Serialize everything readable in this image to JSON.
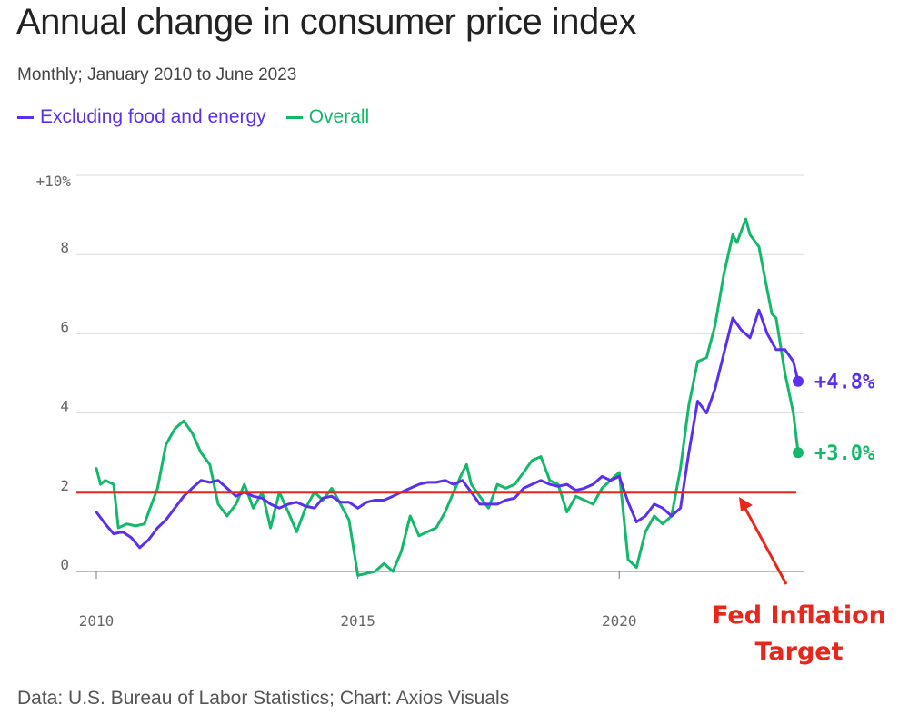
{
  "title": "Annual change in consumer price index",
  "subtitle": "Monthly; January 2010 to June 2023",
  "legend": [
    {
      "label": "Excluding food and energy",
      "color": "#5b2ff0"
    },
    {
      "label": "Overall",
      "color": "#14b86a"
    }
  ],
  "footer": "Data: U.S. Bureau of Labor Statistics; Chart: Axios Visuals",
  "annotation": {
    "line1": "Fed Inflation",
    "line2": "Target",
    "color": "#e8271c"
  },
  "chart_data": {
    "type": "line",
    "title": "Annual change in consumer price index",
    "xlabel": "",
    "ylabel": "",
    "xlim": [
      2010,
      2023.42
    ],
    "ylim": [
      0,
      10
    ],
    "x_ticks": [
      {
        "value": 2010,
        "label": "2010"
      },
      {
        "value": 2015,
        "label": "2015"
      },
      {
        "value": 2020,
        "label": "2020"
      }
    ],
    "y_ticks": [
      {
        "value": 0,
        "label": "0"
      },
      {
        "value": 2,
        "label": "2"
      },
      {
        "value": 4,
        "label": "4"
      },
      {
        "value": 6,
        "label": "6"
      },
      {
        "value": 8,
        "label": "8"
      },
      {
        "value": 10,
        "label": "+10%"
      }
    ],
    "reference_line": {
      "value": 2,
      "label": "Fed Inflation Target",
      "color": "#e8271c"
    },
    "series": [
      {
        "name": "Excluding food and energy",
        "color": "#5b2ff0",
        "end_label": "+4.8%",
        "points": [
          [
            2010.0,
            1.5
          ],
          [
            2010.17,
            1.2
          ],
          [
            2010.33,
            0.95
          ],
          [
            2010.5,
            1.0
          ],
          [
            2010.67,
            0.85
          ],
          [
            2010.83,
            0.6
          ],
          [
            2011.0,
            0.8
          ],
          [
            2011.17,
            1.1
          ],
          [
            2011.33,
            1.3
          ],
          [
            2011.5,
            1.6
          ],
          [
            2011.67,
            1.9
          ],
          [
            2011.83,
            2.1
          ],
          [
            2012.0,
            2.3
          ],
          [
            2012.17,
            2.25
          ],
          [
            2012.33,
            2.3
          ],
          [
            2012.5,
            2.1
          ],
          [
            2012.67,
            1.9
          ],
          [
            2012.83,
            2.0
          ],
          [
            2013.0,
            1.9
          ],
          [
            2013.17,
            1.85
          ],
          [
            2013.33,
            1.7
          ],
          [
            2013.5,
            1.6
          ],
          [
            2013.67,
            1.7
          ],
          [
            2013.83,
            1.75
          ],
          [
            2014.0,
            1.65
          ],
          [
            2014.17,
            1.6
          ],
          [
            2014.33,
            1.85
          ],
          [
            2014.5,
            1.9
          ],
          [
            2014.67,
            1.75
          ],
          [
            2014.83,
            1.75
          ],
          [
            2015.0,
            1.6
          ],
          [
            2015.17,
            1.75
          ],
          [
            2015.33,
            1.8
          ],
          [
            2015.5,
            1.8
          ],
          [
            2015.67,
            1.9
          ],
          [
            2015.83,
            2.0
          ],
          [
            2016.0,
            2.1
          ],
          [
            2016.17,
            2.2
          ],
          [
            2016.33,
            2.25
          ],
          [
            2016.5,
            2.25
          ],
          [
            2016.67,
            2.3
          ],
          [
            2016.83,
            2.2
          ],
          [
            2017.0,
            2.3
          ],
          [
            2017.17,
            2.0
          ],
          [
            2017.33,
            1.7
          ],
          [
            2017.5,
            1.7
          ],
          [
            2017.67,
            1.7
          ],
          [
            2017.83,
            1.8
          ],
          [
            2018.0,
            1.85
          ],
          [
            2018.17,
            2.1
          ],
          [
            2018.33,
            2.2
          ],
          [
            2018.5,
            2.3
          ],
          [
            2018.67,
            2.2
          ],
          [
            2018.83,
            2.15
          ],
          [
            2019.0,
            2.2
          ],
          [
            2019.17,
            2.05
          ],
          [
            2019.33,
            2.1
          ],
          [
            2019.5,
            2.2
          ],
          [
            2019.67,
            2.4
          ],
          [
            2019.83,
            2.3
          ],
          [
            2020.0,
            2.4
          ],
          [
            2020.17,
            1.75
          ],
          [
            2020.33,
            1.25
          ],
          [
            2020.5,
            1.4
          ],
          [
            2020.67,
            1.7
          ],
          [
            2020.83,
            1.6
          ],
          [
            2021.0,
            1.4
          ],
          [
            2021.17,
            1.6
          ],
          [
            2021.33,
            3.0
          ],
          [
            2021.5,
            4.3
          ],
          [
            2021.67,
            4.0
          ],
          [
            2021.83,
            4.6
          ],
          [
            2022.0,
            5.5
          ],
          [
            2022.17,
            6.4
          ],
          [
            2022.33,
            6.1
          ],
          [
            2022.5,
            5.9
          ],
          [
            2022.67,
            6.6
          ],
          [
            2022.83,
            6.0
          ],
          [
            2023.0,
            5.6
          ],
          [
            2023.17,
            5.6
          ],
          [
            2023.33,
            5.3
          ],
          [
            2023.42,
            4.8
          ]
        ]
      },
      {
        "name": "Overall",
        "color": "#14b86a",
        "end_label": "+3.0%",
        "points": [
          [
            2010.0,
            2.6
          ],
          [
            2010.08,
            2.2
          ],
          [
            2010.17,
            2.3
          ],
          [
            2010.33,
            2.2
          ],
          [
            2010.42,
            1.1
          ],
          [
            2010.58,
            1.2
          ],
          [
            2010.75,
            1.15
          ],
          [
            2010.92,
            1.2
          ],
          [
            2011.0,
            1.5
          ],
          [
            2011.17,
            2.1
          ],
          [
            2011.33,
            3.2
          ],
          [
            2011.5,
            3.6
          ],
          [
            2011.67,
            3.8
          ],
          [
            2011.83,
            3.5
          ],
          [
            2012.0,
            3.0
          ],
          [
            2012.17,
            2.7
          ],
          [
            2012.33,
            1.7
          ],
          [
            2012.5,
            1.4
          ],
          [
            2012.67,
            1.7
          ],
          [
            2012.83,
            2.2
          ],
          [
            2013.0,
            1.6
          ],
          [
            2013.17,
            2.0
          ],
          [
            2013.33,
            1.1
          ],
          [
            2013.5,
            2.0
          ],
          [
            2013.67,
            1.5
          ],
          [
            2013.83,
            1.0
          ],
          [
            2014.0,
            1.6
          ],
          [
            2014.17,
            2.0
          ],
          [
            2014.33,
            1.8
          ],
          [
            2014.5,
            2.1
          ],
          [
            2014.67,
            1.7
          ],
          [
            2014.83,
            1.3
          ],
          [
            2015.0,
            -0.1
          ],
          [
            2015.17,
            -0.05
          ],
          [
            2015.33,
            0.0
          ],
          [
            2015.5,
            0.2
          ],
          [
            2015.67,
            0.0
          ],
          [
            2015.83,
            0.5
          ],
          [
            2016.0,
            1.4
          ],
          [
            2016.17,
            0.9
          ],
          [
            2016.33,
            1.0
          ],
          [
            2016.5,
            1.1
          ],
          [
            2016.67,
            1.5
          ],
          [
            2016.83,
            2.0
          ],
          [
            2017.0,
            2.5
          ],
          [
            2017.08,
            2.7
          ],
          [
            2017.17,
            2.2
          ],
          [
            2017.33,
            1.9
          ],
          [
            2017.5,
            1.6
          ],
          [
            2017.67,
            2.2
          ],
          [
            2017.83,
            2.1
          ],
          [
            2018.0,
            2.2
          ],
          [
            2018.17,
            2.5
          ],
          [
            2018.33,
            2.8
          ],
          [
            2018.5,
            2.9
          ],
          [
            2018.67,
            2.3
          ],
          [
            2018.83,
            2.2
          ],
          [
            2019.0,
            1.5
          ],
          [
            2019.17,
            1.9
          ],
          [
            2019.33,
            1.8
          ],
          [
            2019.5,
            1.7
          ],
          [
            2019.67,
            2.1
          ],
          [
            2019.83,
            2.3
          ],
          [
            2020.0,
            2.5
          ],
          [
            2020.17,
            0.3
          ],
          [
            2020.33,
            0.1
          ],
          [
            2020.5,
            1.0
          ],
          [
            2020.67,
            1.4
          ],
          [
            2020.83,
            1.2
          ],
          [
            2021.0,
            1.4
          ],
          [
            2021.17,
            2.6
          ],
          [
            2021.33,
            4.2
          ],
          [
            2021.5,
            5.3
          ],
          [
            2021.67,
            5.4
          ],
          [
            2021.83,
            6.2
          ],
          [
            2022.0,
            7.5
          ],
          [
            2022.17,
            8.5
          ],
          [
            2022.25,
            8.3
          ],
          [
            2022.42,
            8.9
          ],
          [
            2022.5,
            8.5
          ],
          [
            2022.67,
            8.2
          ],
          [
            2022.83,
            7.1
          ],
          [
            2022.92,
            6.5
          ],
          [
            2023.0,
            6.4
          ],
          [
            2023.17,
            5.0
          ],
          [
            2023.33,
            4.0
          ],
          [
            2023.42,
            3.0
          ]
        ]
      }
    ]
  }
}
